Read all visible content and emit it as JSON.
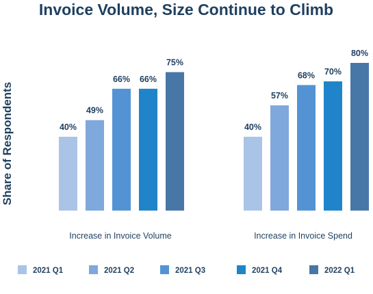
{
  "chart_data": {
    "type": "bar",
    "title": "Invoice Volume, Size Continue to Climb",
    "ylabel": "Share of Respondents",
    "xlabel": "",
    "categories": [
      "Increase in Invoice Volume",
      "Increase in Invoice Spend"
    ],
    "series": [
      {
        "name": "2021 Q1",
        "color": "#a9c4e6",
        "values": [
          40,
          40
        ]
      },
      {
        "name": "2021 Q2",
        "color": "#7fa8dc",
        "values": [
          49,
          57
        ]
      },
      {
        "name": "2021 Q3",
        "color": "#5393d4",
        "values": [
          66,
          68
        ]
      },
      {
        "name": "2021 Q4",
        "color": "#1f84c9",
        "values": [
          66,
          70
        ]
      },
      {
        "name": "2022 Q1",
        "color": "#4777a6",
        "values": [
          75,
          80
        ]
      }
    ],
    "value_suffix": "%",
    "ylim": [
      0,
      100
    ],
    "grid": false,
    "legend_position": "bottom"
  }
}
